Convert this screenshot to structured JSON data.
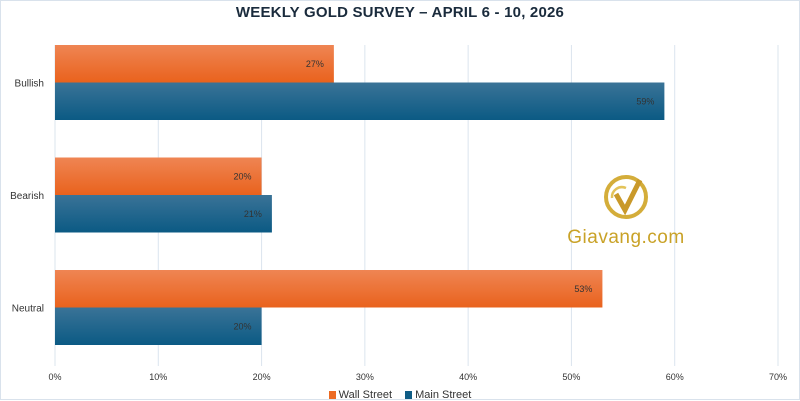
{
  "chart_data": {
    "type": "bar",
    "orientation": "horizontal",
    "title": "WEEKLY GOLD SURVEY – APRIL 6 - 10, 2026",
    "categories": [
      "Bullish",
      "Bearish",
      "Neutral"
    ],
    "series": [
      {
        "name": "Wall Street",
        "values": [
          27,
          20,
          53
        ],
        "color": "#ec6a23"
      },
      {
        "name": "Main Street",
        "values": [
          59,
          21,
          20
        ],
        "color": "#0f5c85"
      }
    ],
    "data_labels": [
      [
        "27%",
        "20%",
        "53%"
      ],
      [
        "59%",
        "21%",
        "20%"
      ]
    ],
    "xlim": [
      0,
      70
    ],
    "xticks": [
      "0%",
      "10%",
      "20%",
      "30%",
      "40%",
      "50%",
      "60%",
      "70%"
    ],
    "grid": true,
    "legend": "bottom",
    "xlabel": "",
    "ylabel": ""
  },
  "watermark": {
    "text": "Giavang.com"
  }
}
